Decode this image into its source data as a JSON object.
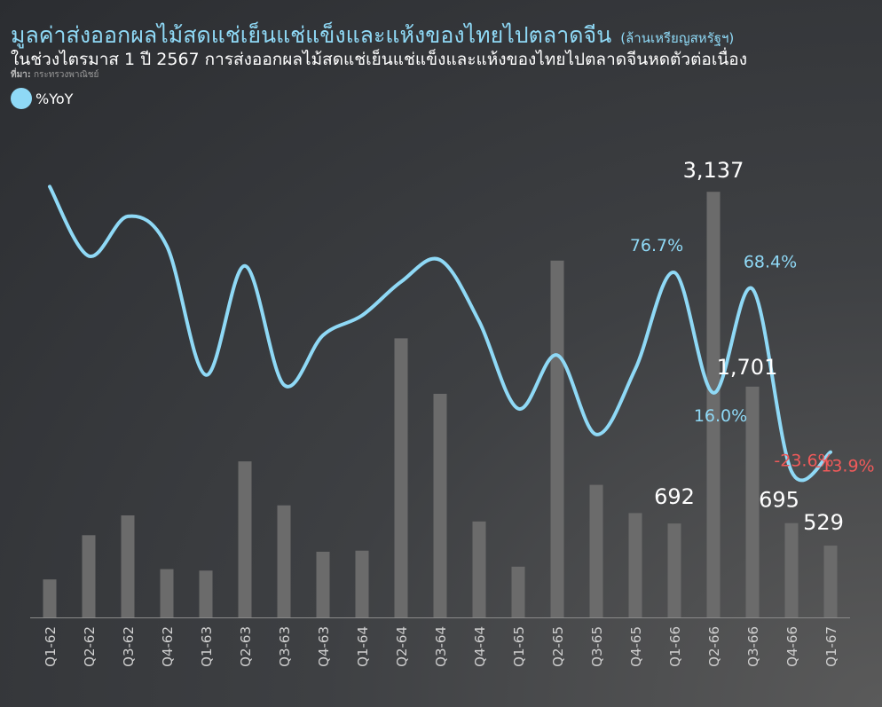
{
  "header": {
    "title": "มูลค่าส่งออกผลไม้สดแช่เย็นแช่แข็งและแห้งของไทยไปตลาดจีน",
    "unit": "(ล้านเหรียญสหรัฐฯ)",
    "subtitle": "ในช่วงไตรมาส 1 ปี 2567 การส่งออกผลไม้สดแช่เย็นแช่แข็งและแห้งของไทยไปตลาดจีนหดตัวต่อเนื่อง",
    "source_label": "ที่มา:",
    "source": "กระทรวงพาณิชย์"
  },
  "legend": {
    "label": "%YoY",
    "color": "#8fd9f6"
  },
  "chart_data": {
    "type": "bar",
    "categories": [
      "Q1-62",
      "Q2-62",
      "Q3-62",
      "Q4-62",
      "Q1-63",
      "Q2-63",
      "Q3-63",
      "Q4-63",
      "Q1-64",
      "Q2-64",
      "Q3-64",
      "Q4-64",
      "Q1-65",
      "Q2-65",
      "Q3-65",
      "Q4-65",
      "Q1-66",
      "Q2-66",
      "Q3-66",
      "Q4-66",
      "Q1-67"
    ],
    "series": [
      {
        "name": "",
        "type": "bar",
        "axis": "left",
        "color": "#6b6b6b",
        "values": [
          280,
          606,
          752,
          356,
          345,
          1150,
          826,
          484,
          492,
          2057,
          1648,
          707,
          374,
          2630,
          977,
          769,
          692,
          3137,
          1701,
          695,
          529
        ],
        "labels": [
          null,
          null,
          null,
          null,
          null,
          null,
          null,
          null,
          null,
          null,
          null,
          null,
          null,
          null,
          null,
          null,
          "692",
          "3,137",
          "1,701",
          "695",
          "529"
        ]
      },
      {
        "name": "%YoY",
        "type": "line",
        "axis": "right",
        "color": "#8fd9f6",
        "values": [
          120,
          85,
          105,
          90,
          25,
          80,
          20,
          45,
          55,
          72,
          83,
          52,
          8,
          35,
          -5,
          28,
          76.7,
          16.0,
          68.4,
          -23.6,
          -13.9
        ],
        "labels": [
          null,
          null,
          null,
          null,
          null,
          null,
          null,
          null,
          null,
          null,
          null,
          null,
          null,
          null,
          null,
          null,
          "76.7%",
          "16.0%",
          "68.4%",
          "-23.6%",
          "-13.9%"
        ]
      }
    ],
    "ylim_left": [
      0,
      3400
    ],
    "ylim_right": [
      -40,
      130
    ],
    "grid": false,
    "legend_position": "top-left",
    "negative_label_color": "#f05a5a",
    "positive_label_color": "#8fd9f6",
    "bar_label_color": "#ffffff"
  }
}
